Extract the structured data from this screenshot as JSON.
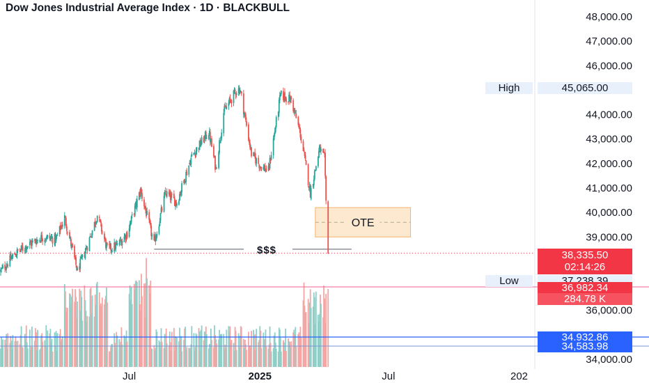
{
  "title": "Dow Jones Industrial Average Index · 1D · BLACKBULL",
  "colors": {
    "up": "#26a69a",
    "down": "#ef5350",
    "vol_up": "#8fcfc8",
    "vol_down": "#f4a6a4",
    "ote_fill": "#fde9cf",
    "ote_border": "#f6b26b",
    "last_price": "#f23645",
    "level_blue": "#2962ff",
    "low_line": "#f06292"
  },
  "chart_data": {
    "type": "candlestick",
    "ylim": [
      34000,
      48000
    ],
    "y_ticks": [
      "34,000.00",
      "36,000.00",
      "39,000.00",
      "40,000.00",
      "41,000.00",
      "42,000.00",
      "43,000.00",
      "44,000.00",
      "46,000.00",
      "47,000.00",
      "48,000.00"
    ],
    "y_tick_values": [
      34000,
      36000,
      39000,
      40000,
      41000,
      42000,
      43000,
      44000,
      46000,
      47000,
      48000
    ],
    "x_ticks": [
      {
        "label": "Jul",
        "date": "2024-07-01",
        "bold": false
      },
      {
        "label": "2025",
        "date": "2025-01-01",
        "bold": true
      },
      {
        "label": "Jul",
        "date": "2025-07-01",
        "bold": false
      },
      {
        "label": "202",
        "date": "2026-01-01",
        "bold": false
      }
    ],
    "x_range": [
      "2024-01-01",
      "2026-01-25"
    ],
    "last_date": "2025-04-07",
    "series_name": "",
    "close_path": [
      {
        "date": "2024-01-02",
        "value": 37600
      },
      {
        "date": "2024-01-22",
        "value": 38300
      },
      {
        "date": "2024-02-08",
        "value": 38650
      },
      {
        "date": "2024-03-01",
        "value": 39000
      },
      {
        "date": "2024-03-20",
        "value": 38900
      },
      {
        "date": "2024-04-01",
        "value": 39800
      },
      {
        "date": "2024-04-19",
        "value": 37600
      },
      {
        "date": "2024-05-03",
        "value": 38650
      },
      {
        "date": "2024-05-17",
        "value": 39900
      },
      {
        "date": "2024-05-31",
        "value": 38500
      },
      {
        "date": "2024-06-14",
        "value": 38650
      },
      {
        "date": "2024-06-28",
        "value": 39150
      },
      {
        "date": "2024-07-17",
        "value": 40900
      },
      {
        "date": "2024-08-05",
        "value": 38700
      },
      {
        "date": "2024-08-21",
        "value": 40800
      },
      {
        "date": "2024-09-06",
        "value": 40400
      },
      {
        "date": "2024-09-27",
        "value": 42300
      },
      {
        "date": "2024-10-21",
        "value": 43300
      },
      {
        "date": "2024-10-31",
        "value": 41800
      },
      {
        "date": "2024-11-11",
        "value": 44100
      },
      {
        "date": "2024-11-29",
        "value": 45000
      },
      {
        "date": "2024-12-04",
        "value": 45050
      },
      {
        "date": "2024-12-20",
        "value": 42400
      },
      {
        "date": "2025-01-02",
        "value": 41900
      },
      {
        "date": "2025-01-13",
        "value": 41700
      },
      {
        "date": "2025-01-30",
        "value": 44800
      },
      {
        "date": "2025-02-14",
        "value": 44600
      },
      {
        "date": "2025-02-27",
        "value": 43200
      },
      {
        "date": "2025-03-13",
        "value": 40800
      },
      {
        "date": "2025-03-26",
        "value": 42600
      },
      {
        "date": "2025-04-02",
        "value": 42200
      },
      {
        "date": "2025-04-04",
        "value": 40400
      },
      {
        "date": "2025-04-07",
        "value": 38335.5
      }
    ],
    "ote_zone": {
      "label": "OTE",
      "y_bottom": 39000,
      "y_top": 40200,
      "x_start": "2025-03-20",
      "x_end": "2025-08-01"
    },
    "liquidity": {
      "label": "$$$",
      "value": 38500,
      "x_start": "2024-08-05",
      "x_end": "2025-05-10"
    },
    "high": {
      "label": "High",
      "value": "45,065.00"
    },
    "low": {
      "label": "Low",
      "value": "37,238.39"
    },
    "last_price": {
      "value": "38,335.50",
      "countdown": "02:14:26"
    },
    "volume": {
      "value": "36,982.34",
      "sub": "284.78 K"
    },
    "levels": [
      {
        "value": "34,932.86"
      },
      {
        "value": "34,583.98"
      }
    ]
  }
}
